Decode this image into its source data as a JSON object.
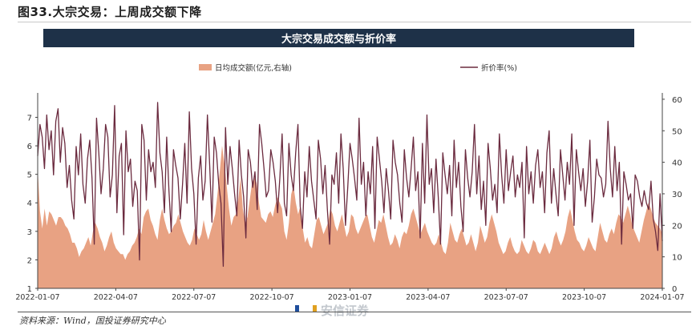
{
  "figure_title": "图33.大宗交易：上周成交额下降",
  "source_note": "资料来源：Wind，国投证券研究中心",
  "watermark_text": "安信证券",
  "colors": {
    "area": "#e8a283",
    "line": "#6b2b3f",
    "banner": "#1e3148"
  },
  "chart_data": {
    "type": "area",
    "title": "大宗交易成交额与折价率",
    "legend": {
      "position": "top",
      "entries": [
        "日均成交额(亿元,右轴)",
        "折价率(%)"
      ]
    },
    "grid": false,
    "x_tick_labels": [
      "2022-01-07",
      "2022-04-07",
      "2022-07-07",
      "2022-10-07",
      "2023-01-07",
      "2023-04-07",
      "2023-07-07",
      "2023-10-07",
      "2024-01-07"
    ],
    "left_axis": {
      "ticks": [
        1,
        2,
        3,
        4,
        5,
        6,
        7
      ],
      "ylim": [
        1,
        7.8
      ]
    },
    "right_axis": {
      "ticks": [
        0,
        10,
        20,
        30,
        40,
        50,
        60
      ],
      "ylim": [
        0,
        61.5
      ]
    },
    "series": [
      {
        "name": "日均成交额(亿元,右轴)",
        "type": "area",
        "axis": "left",
        "values": [
          5.2,
          3.7,
          3.1,
          3.8,
          3.2,
          3.7,
          3.6,
          3.4,
          3.2,
          3.5,
          3.5,
          3.4,
          3.2,
          3.1,
          2.9,
          2.6,
          2.6,
          2.4,
          2.1,
          2.3,
          2.4,
          2.6,
          2.8,
          2.5,
          3.0,
          3.3,
          3.1,
          2.8,
          2.6,
          2.3,
          2.5,
          2.8,
          3.0,
          2.6,
          2.4,
          2.3,
          2.2,
          2.2,
          2.0,
          2.2,
          2.3,
          2.5,
          2.6,
          2.8,
          3.1,
          2.9,
          3.5,
          3.7,
          3.8,
          3.4,
          3.2,
          2.9,
          2.7,
          3.4,
          3.8,
          3.4,
          3.1,
          2.9,
          3.0,
          3.2,
          3.3,
          3.6,
          3.3,
          3.0,
          2.8,
          2.6,
          2.5,
          2.7,
          3.1,
          2.9,
          2.7,
          2.9,
          3.4,
          3.0,
          2.7,
          3.0,
          3.3,
          3.6,
          4.3,
          5.1,
          6.0,
          5.4,
          4.6,
          3.8,
          3.2,
          3.5,
          3.6,
          4.1,
          4.9,
          3.8,
          3.3,
          3.5,
          4.1,
          4.7,
          4.9,
          4.7,
          4.0,
          3.5,
          3.4,
          3.3,
          3.6,
          3.7,
          3.5,
          3.9,
          4.2,
          4.0,
          3.8,
          3.0,
          2.7,
          3.3,
          4.3,
          4.6,
          4.0,
          3.6,
          3.9,
          3.1,
          2.6,
          2.8,
          2.5,
          2.4,
          2.9,
          3.4,
          3.5,
          3.2,
          2.9,
          3.1,
          3.3,
          3.8,
          3.6,
          3.2,
          3.0,
          3.3,
          3.6,
          3.2,
          2.8,
          3.0,
          3.6,
          3.5,
          3.1,
          2.9,
          3.1,
          3.3,
          3.5,
          3.6,
          3.2,
          2.8,
          2.6,
          3.0,
          3.4,
          3.3,
          3.6,
          3.2,
          2.8,
          2.5,
          2.6,
          2.9,
          2.7,
          2.4,
          2.8,
          3.0,
          2.9,
          3.2,
          3.6,
          3.8,
          3.5,
          3.2,
          2.9,
          3.1,
          3.3,
          3.0,
          2.8,
          2.6,
          2.5,
          2.6,
          2.9,
          2.6,
          2.3,
          2.2,
          2.6,
          3.3,
          3.0,
          2.7,
          2.6,
          2.9,
          3.1,
          2.8,
          2.5,
          2.6,
          2.9,
          2.6,
          2.3,
          2.6,
          3.2,
          2.9,
          2.6,
          2.8,
          3.3,
          3.6,
          3.3,
          3.0,
          2.6,
          2.4,
          2.2,
          2.3,
          2.6,
          2.8,
          2.5,
          2.3,
          2.2,
          2.3,
          2.7,
          2.5,
          2.3,
          2.2,
          2.4,
          2.7,
          2.6,
          2.3,
          2.2,
          2.4,
          2.6,
          2.4,
          2.2,
          2.4,
          2.8,
          3.0,
          2.7,
          2.5,
          2.7,
          3.0,
          3.5,
          3.8,
          3.4,
          3.0,
          2.7,
          2.6,
          2.4,
          2.3,
          2.5,
          2.8,
          2.6,
          2.4,
          2.3,
          2.8,
          3.3,
          3.0,
          2.7,
          2.6,
          2.9,
          3.1,
          2.9,
          3.3,
          3.6,
          3.5,
          3.3,
          3.6,
          3.9,
          3.6,
          3.2,
          3.0,
          2.8,
          2.6,
          3.0,
          3.4,
          3.7,
          4.0,
          3.8,
          3.5,
          3.3,
          3.2,
          3.1,
          2.9
        ]
      },
      {
        "name": "折价率(%)",
        "type": "line",
        "axis": "right",
        "values": [
          42,
          52,
          48,
          38,
          55,
          44,
          50,
          36,
          53,
          57,
          40,
          51,
          46,
          32,
          39,
          28,
          22,
          45,
          36,
          49,
          33,
          27,
          41,
          47,
          35,
          14,
          54,
          43,
          30,
          38,
          52,
          48,
          29,
          36,
          58,
          24,
          42,
          46,
          17,
          50,
          37,
          41,
          26,
          34,
          31,
          9,
          52,
          47,
          28,
          44,
          37,
          40,
          32,
          59,
          43,
          37,
          24,
          48,
          31,
          18,
          44,
          39,
          35,
          22,
          33,
          46,
          27,
          56,
          38,
          30,
          14,
          35,
          42,
          28,
          34,
          55,
          39,
          21,
          48,
          43,
          33,
          27,
          7,
          51,
          33,
          45,
          38,
          30,
          23,
          47,
          36,
          29,
          16,
          44,
          40,
          32,
          37,
          25,
          52,
          46,
          38,
          29,
          31,
          44,
          40,
          34,
          24,
          35,
          49,
          27,
          23,
          46,
          36,
          31,
          43,
          52,
          26,
          19,
          37,
          29,
          45,
          34,
          28,
          22,
          47,
          41,
          30,
          39,
          25,
          14,
          36,
          33,
          43,
          27,
          49,
          38,
          20,
          32,
          46,
          41,
          35,
          28,
          54,
          33,
          40,
          23,
          37,
          30,
          45,
          19,
          48,
          41,
          34,
          24,
          38,
          31,
          22,
          47,
          40,
          36,
          27,
          21,
          44,
          35,
          29,
          38,
          48,
          31,
          37,
          16,
          46,
          27,
          55,
          33,
          38,
          24,
          41,
          29,
          14,
          43,
          36,
          30,
          39,
          23,
          47,
          32,
          40,
          26,
          18,
          44,
          35,
          29,
          37,
          52,
          30,
          42,
          25,
          34,
          20,
          46,
          38,
          28,
          33,
          24,
          49,
          36,
          27,
          44,
          31,
          37,
          42,
          29,
          36,
          32,
          40,
          16,
          45,
          30,
          37,
          27,
          39,
          44,
          32,
          37,
          24,
          43,
          50,
          27,
          38,
          30,
          23,
          44,
          36,
          28,
          40,
          33,
          49,
          20,
          44,
          37,
          31,
          38,
          26,
          34,
          47,
          21,
          29,
          41,
          36,
          35,
          29,
          33,
          53,
          38,
          29,
          45,
          31,
          40,
          14,
          37,
          33,
          28,
          30,
          19,
          36,
          34,
          29,
          26,
          31,
          27,
          25,
          34,
          22,
          18,
          12,
          30,
          15
        ]
      }
    ]
  }
}
